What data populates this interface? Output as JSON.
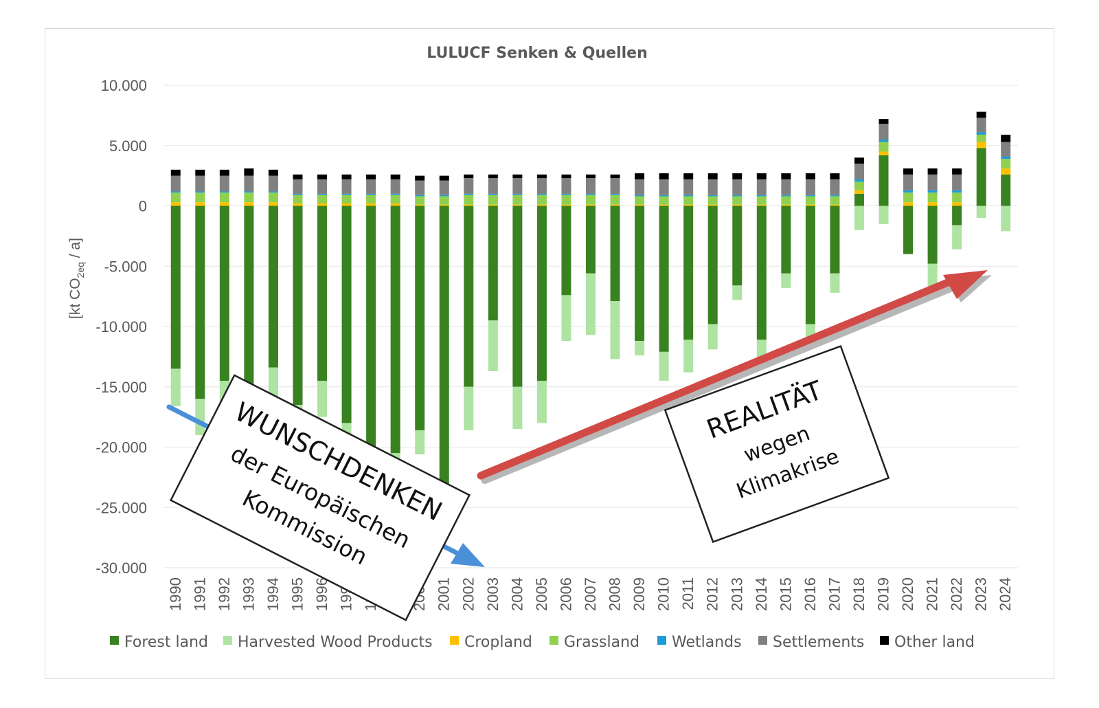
{
  "colors": {
    "Forest land": "#38821f",
    "Harvested Wood Products": "#aee3a2",
    "Cropland": "#ffc000",
    "Grassland": "#8fd14f",
    "Wetlands": "#1f9bd7",
    "Settlements": "#808080",
    "Other land": "#000000",
    "arrow_down": "#4a90d9",
    "arrow_up": "#d14a45",
    "grid": "#e6e6e6",
    "text": "#595959"
  },
  "chart_data": {
    "type": "bar",
    "stacked": true,
    "title": "LULUCF Senken & Quellen",
    "ylabel_main": "[kt CO",
    "ylabel_sub": "2eq",
    "ylabel_tail": " / a]",
    "ylim": [
      -30000,
      10000
    ],
    "yticks": [
      10000,
      5000,
      0,
      -5000,
      -10000,
      -15000,
      -20000,
      -25000,
      -30000
    ],
    "ytick_labels": [
      "10.000",
      "5.000",
      "0",
      "-5.000",
      "-10.000",
      "-15.000",
      "-20.000",
      "-25.000",
      "-30.000"
    ],
    "grid": true,
    "legend_position": "bottom",
    "categories": [
      "1990",
      "1991",
      "1992",
      "1993",
      "1994",
      "1995",
      "1996",
      "1997",
      "1998",
      "1999",
      "2000",
      "2001",
      "2002",
      "2003",
      "2004",
      "2005",
      "2006",
      "2007",
      "2008",
      "2009",
      "2010",
      "2011",
      "2012",
      "2013",
      "2014",
      "2015",
      "2016",
      "2017",
      "2018",
      "2019",
      "2020",
      "2021",
      "2022",
      "2023",
      "2024"
    ],
    "series": [
      {
        "name": "Forest land",
        "values": [
          -13500,
          -16000,
          -14500,
          -16000,
          -13400,
          -16500,
          -14500,
          -18000,
          -20000,
          -20500,
          -18600,
          -24000,
          -15000,
          -9500,
          -15000,
          -14500,
          -7400,
          -5600,
          -7900,
          -11200,
          -12100,
          -11100,
          -9800,
          -6600,
          -11100,
          -5600,
          -9800,
          -5600,
          1000,
          4200,
          -4000,
          -4800,
          -1600,
          4800,
          2600
        ]
      },
      {
        "name": "Harvested Wood Products",
        "values": [
          -3100,
          -3000,
          -3200,
          -3100,
          -3300,
          -2700,
          -3000,
          -2700,
          -2500,
          -2500,
          -2000,
          -2800,
          -3600,
          -4200,
          -3500,
          -3500,
          -3800,
          -5100,
          -4800,
          -1200,
          -2400,
          -2700,
          -2100,
          -1200,
          -1600,
          -1200,
          -1100,
          -1600,
          -2000,
          -1500,
          0,
          -1900,
          -2000,
          -1000,
          -2100
        ]
      },
      {
        "name": "Cropland",
        "values": [
          300,
          300,
          300,
          300,
          300,
          200,
          200,
          200,
          200,
          200,
          100,
          100,
          100,
          100,
          100,
          100,
          100,
          100,
          100,
          100,
          100,
          100,
          100,
          100,
          100,
          100,
          100,
          100,
          300,
          300,
          300,
          300,
          300,
          500,
          500
        ]
      },
      {
        "name": "Grassland",
        "values": [
          800,
          800,
          800,
          800,
          800,
          700,
          700,
          700,
          700,
          700,
          700,
          700,
          800,
          800,
          800,
          800,
          800,
          800,
          800,
          700,
          700,
          700,
          700,
          700,
          700,
          700,
          700,
          700,
          700,
          800,
          800,
          800,
          800,
          600,
          800
        ]
      },
      {
        "name": "Wetlands",
        "values": [
          100,
          100,
          100,
          100,
          100,
          100,
          100,
          100,
          100,
          100,
          100,
          100,
          100,
          100,
          100,
          100,
          100,
          100,
          100,
          100,
          100,
          100,
          100,
          100,
          100,
          100,
          100,
          100,
          200,
          200,
          200,
          200,
          200,
          200,
          200
        ]
      },
      {
        "name": "Settlements",
        "values": [
          1300,
          1300,
          1300,
          1300,
          1300,
          1200,
          1200,
          1200,
          1200,
          1200,
          1200,
          1200,
          1300,
          1300,
          1300,
          1300,
          1300,
          1300,
          1300,
          1300,
          1300,
          1300,
          1300,
          1300,
          1300,
          1300,
          1300,
          1300,
          1300,
          1300,
          1300,
          1300,
          1300,
          1200,
          1200
        ]
      },
      {
        "name": "Other land",
        "values": [
          500,
          500,
          500,
          600,
          500,
          400,
          400,
          400,
          400,
          400,
          400,
          400,
          300,
          300,
          300,
          300,
          300,
          300,
          300,
          500,
          500,
          500,
          500,
          500,
          500,
          500,
          500,
          500,
          500,
          400,
          500,
          500,
          500,
          500,
          600
        ]
      }
    ],
    "annotations": [
      {
        "line1": "WUNSCHDENKEN",
        "line2": "der Europäischen",
        "line3": "Kommission"
      },
      {
        "line1": "REALITÄT",
        "line2": "wegen",
        "line3": "Klimakrise"
      }
    ]
  }
}
